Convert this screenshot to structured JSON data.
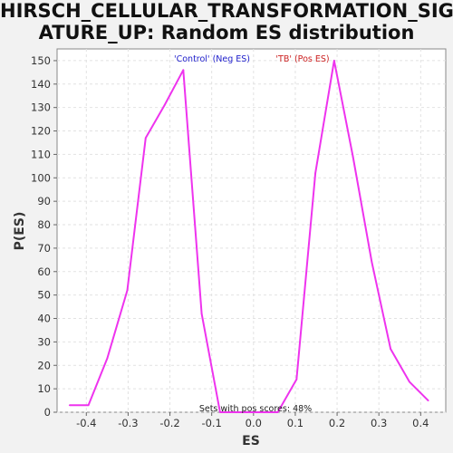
{
  "chart_data": {
    "type": "line",
    "title_line1": "HIRSCH_CELLULAR_TRANSFORMATION_SIGN",
    "title_line2": "ATURE_UP: Random ES distribution",
    "xlabel": "ES",
    "ylabel": "P(ES)",
    "xlim": [
      -0.47,
      0.46
    ],
    "ylim": [
      0,
      155
    ],
    "x_ticks": [
      -0.4,
      -0.3,
      -0.2,
      -0.1,
      0.0,
      0.1,
      0.2,
      0.3,
      0.4
    ],
    "x_tick_labels": [
      "-0.4",
      "-0.3",
      "-0.2",
      "-0.1",
      "0.0",
      "0.1",
      "0.2",
      "0.3",
      "0.4"
    ],
    "y_ticks": [
      0,
      10,
      20,
      30,
      40,
      50,
      60,
      70,
      80,
      90,
      100,
      110,
      120,
      130,
      140,
      150
    ],
    "grid": true,
    "legend": {
      "position": "top",
      "entries": [
        {
          "label": "'Control' (Neg ES)",
          "color": "#2222cc"
        },
        {
          "label": "'TB' (Pos ES)",
          "color": "#cc2222"
        }
      ]
    },
    "annotation": "Sets with pos scores: 48%",
    "line_color": "#ee33ee",
    "series": [
      {
        "x": [
          -0.44,
          -0.395,
          -0.35,
          -0.302,
          -0.258,
          -0.213,
          -0.168,
          -0.124,
          -0.08,
          -0.035,
          0.01,
          0.058,
          0.103,
          0.148,
          0.193,
          0.238,
          0.283,
          0.328,
          0.373,
          0.418
        ],
        "y": [
          3,
          3,
          23,
          52,
          117,
          131,
          146,
          42,
          0,
          0,
          0,
          0,
          14,
          102,
          150,
          109,
          64,
          27,
          13,
          5
        ]
      }
    ]
  }
}
